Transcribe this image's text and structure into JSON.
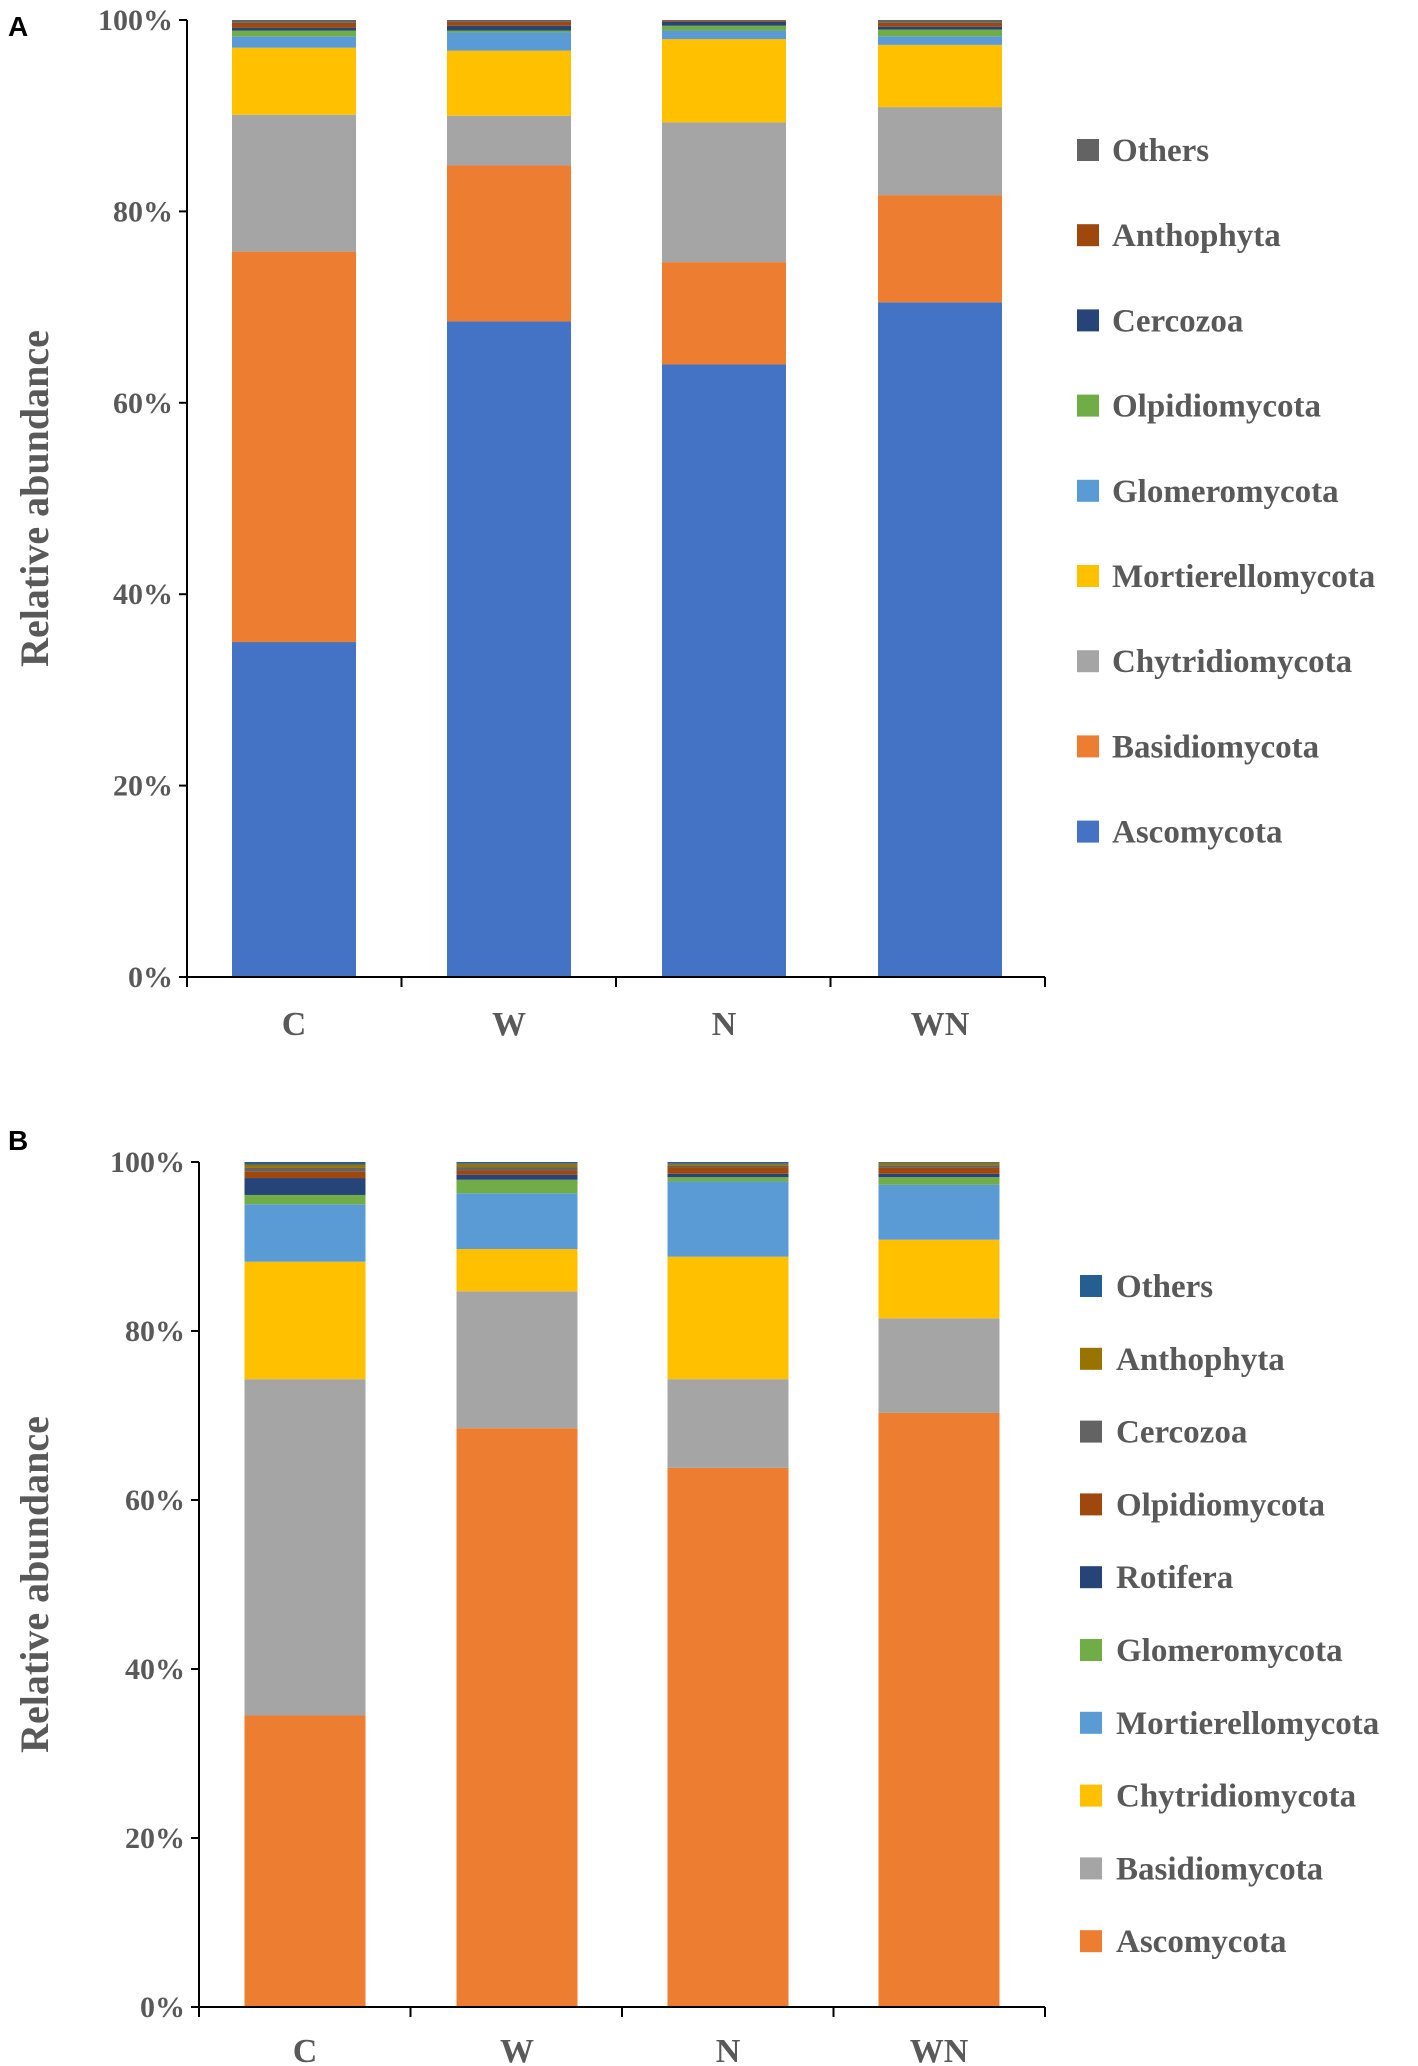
{
  "chart_data": [
    {
      "panel": "A",
      "type": "bar",
      "stacked": true,
      "ylabel": "Relative abundance",
      "ylim": [
        0,
        100
      ],
      "yticks": [
        "0%",
        "20%",
        "40%",
        "60%",
        "80%",
        "100%"
      ],
      "categories": [
        "C",
        "W",
        "N",
        "WN"
      ],
      "series": [
        {
          "name": "Ascomycota",
          "color": "#4472C4",
          "values": [
            35.0,
            68.5,
            64.0,
            70.5
          ]
        },
        {
          "name": "Basidiomycota",
          "color": "#ED7D31",
          "values": [
            40.8,
            16.3,
            10.7,
            11.2
          ]
        },
        {
          "name": "Chytridiomycota",
          "color": "#A5A5A5",
          "values": [
            14.3,
            5.2,
            14.6,
            9.2
          ]
        },
        {
          "name": "Mortierellomycota",
          "color": "#FFC000",
          "values": [
            7.0,
            6.8,
            8.7,
            6.5
          ]
        },
        {
          "name": "Glomeromycota",
          "color": "#5B9BD5",
          "values": [
            1.2,
            1.9,
            0.9,
            0.9
          ]
        },
        {
          "name": "Olpidiomycota",
          "color": "#70AD47",
          "values": [
            0.6,
            0.2,
            0.5,
            0.7
          ]
        },
        {
          "name": "Cercozoa",
          "color": "#264478",
          "values": [
            0.3,
            0.5,
            0.4,
            0.3
          ]
        },
        {
          "name": "Anthophyta",
          "color": "#9E480E",
          "values": [
            0.5,
            0.4,
            0.1,
            0.4
          ]
        },
        {
          "name": "Others",
          "color": "#636363",
          "values": [
            0.3,
            0.2,
            0.1,
            0.3
          ]
        }
      ]
    },
    {
      "panel": "B",
      "type": "bar",
      "stacked": true,
      "ylabel": "Relative abundance",
      "ylim": [
        0,
        100
      ],
      "yticks": [
        "0%",
        "20%",
        "40%",
        "60%",
        "80%",
        "100%"
      ],
      "categories": [
        "C",
        "W",
        "N",
        "WN"
      ],
      "series": [
        {
          "name": "Ascomycota",
          "color": "#ED7D31",
          "values": [
            34.5,
            68.5,
            63.8,
            70.3
          ]
        },
        {
          "name": "Basidiomycota",
          "color": "#A5A5A5",
          "values": [
            39.8,
            16.2,
            10.5,
            11.2
          ]
        },
        {
          "name": "Chytridiomycota",
          "color": "#FFC000",
          "values": [
            13.9,
            5.0,
            14.5,
            9.3
          ]
        },
        {
          "name": "Mortierellomycota",
          "color": "#5B9BD5",
          "values": [
            6.8,
            6.6,
            8.9,
            6.5
          ]
        },
        {
          "name": "Glomeromycota",
          "color": "#70AD47",
          "values": [
            1.1,
            1.6,
            0.5,
            0.9
          ]
        },
        {
          "name": "Rotifera",
          "color": "#264478",
          "values": [
            2.0,
            0.6,
            0.4,
            0.4
          ]
        },
        {
          "name": "Olpidiomycota",
          "color": "#9E480E",
          "values": [
            0.8,
            0.5,
            0.8,
            0.7
          ]
        },
        {
          "name": "Cercozoa",
          "color": "#636363",
          "values": [
            0.4,
            0.4,
            0.2,
            0.3
          ]
        },
        {
          "name": "Anthophyta",
          "color": "#997300",
          "values": [
            0.4,
            0.4,
            0.2,
            0.3
          ]
        },
        {
          "name": "Others",
          "color": "#255E91",
          "values": [
            0.3,
            0.2,
            0.2,
            0.1
          ]
        }
      ]
    }
  ]
}
